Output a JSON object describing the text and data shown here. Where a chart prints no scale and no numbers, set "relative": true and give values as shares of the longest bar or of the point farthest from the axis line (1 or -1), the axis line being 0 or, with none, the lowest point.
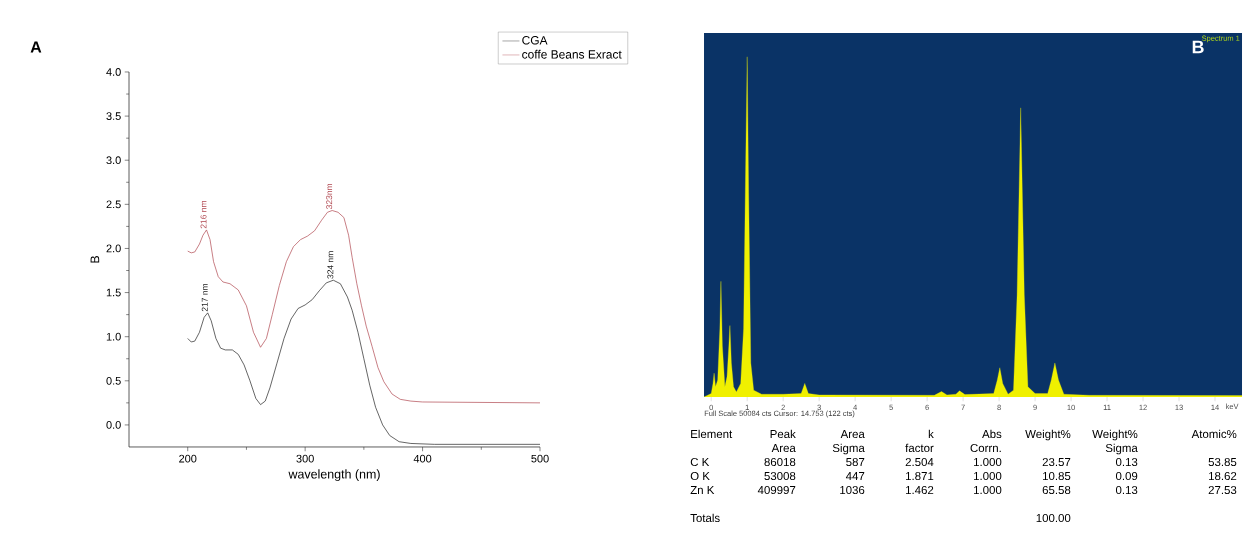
{
  "chart_data": [
    {
      "type": "line",
      "xlabel": "wavelength (nm)",
      "ylabel": "B",
      "xlim": [
        150,
        500
      ],
      "ylim": [
        -0.25,
        4.0
      ],
      "xticks": [
        200,
        300,
        400,
        500
      ],
      "yticks": [
        {
          "value": 0,
          "label": "0.0"
        },
        {
          "value": 0.5,
          "label": "0.5"
        },
        {
          "value": 1,
          "label": "1.0"
        },
        {
          "value": 1.5,
          "label": "1.5"
        },
        {
          "value": 2,
          "label": "2.0"
        },
        {
          "value": 2.5,
          "label": "2.5"
        },
        {
          "value": 3,
          "label": "3.0"
        },
        {
          "value": 3.5,
          "label": "3.5"
        },
        {
          "value": 4,
          "label": "4.0"
        }
      ],
      "legend": "top right",
      "series": [
        {
          "name": "CGA",
          "color": "#222222",
          "x": [
            200,
            203,
            206,
            210,
            214,
            217,
            220,
            224,
            228,
            232,
            238,
            243,
            248,
            253,
            258,
            262,
            266,
            270,
            276,
            282,
            288,
            294,
            300,
            306,
            312,
            318,
            324,
            330,
            336,
            340,
            345,
            350,
            355,
            360,
            366,
            372,
            380,
            390,
            410,
            450,
            500
          ],
          "values": [
            0.98,
            0.94,
            0.95,
            1.05,
            1.22,
            1.27,
            1.18,
            0.98,
            0.87,
            0.85,
            0.85,
            0.8,
            0.68,
            0.5,
            0.3,
            0.23,
            0.27,
            0.42,
            0.7,
            0.98,
            1.2,
            1.32,
            1.36,
            1.42,
            1.52,
            1.61,
            1.64,
            1.6,
            1.45,
            1.3,
            1.05,
            0.75,
            0.45,
            0.2,
            0.0,
            -0.12,
            -0.19,
            -0.21,
            -0.22,
            -0.22,
            -0.22
          ]
        },
        {
          "name": "coffe Beans Exract",
          "color": "#b0464f",
          "x": [
            200,
            203,
            206,
            210,
            213,
            216,
            219,
            222,
            226,
            230,
            236,
            243,
            250,
            256,
            262,
            267,
            272,
            278,
            284,
            290,
            296,
            302,
            308,
            314,
            319,
            323,
            328,
            333,
            337,
            340,
            344,
            348,
            352,
            357,
            362,
            367,
            374,
            381,
            390,
            400,
            500
          ],
          "values": [
            1.97,
            1.95,
            1.96,
            2.05,
            2.15,
            2.21,
            2.1,
            1.85,
            1.68,
            1.62,
            1.6,
            1.53,
            1.35,
            1.05,
            0.88,
            0.98,
            1.25,
            1.58,
            1.85,
            2.02,
            2.1,
            2.14,
            2.2,
            2.32,
            2.41,
            2.43,
            2.41,
            2.35,
            2.15,
            1.9,
            1.6,
            1.35,
            1.12,
            0.89,
            0.65,
            0.49,
            0.35,
            0.29,
            0.27,
            0.26,
            0.25
          ]
        }
      ],
      "annotations": [
        "A",
        {
          "text": "216 nm",
          "x": 216,
          "y": 2.21
        },
        {
          "text": "323nm",
          "x": 323,
          "y": 2.43
        },
        {
          "text": "217 nm",
          "x": 217,
          "y": 1.27
        },
        {
          "text": "324 nm",
          "x": 324,
          "y": 1.64
        }
      ]
    },
    {
      "type": "area",
      "relative": true,
      "xlabel": "keV",
      "xlim": [
        -0.2,
        14.75
      ],
      "xticks": [
        0,
        1,
        2,
        3,
        4,
        5,
        6,
        7,
        8,
        9,
        10,
        11,
        12,
        13,
        14
      ],
      "color": "#f0f000",
      "x": [
        -0.2,
        0.0,
        0.05,
        0.08,
        0.12,
        0.18,
        0.24,
        0.27,
        0.31,
        0.38,
        0.44,
        0.49,
        0.52,
        0.56,
        0.62,
        0.7,
        0.82,
        0.9,
        0.96,
        1.0,
        1.04,
        1.1,
        1.18,
        1.4,
        2.0,
        2.5,
        2.6,
        2.7,
        3.0,
        6.2,
        6.4,
        6.55,
        6.8,
        6.9,
        7.05,
        7.85,
        7.95,
        8.02,
        8.1,
        8.25,
        8.4,
        8.5,
        8.6,
        8.7,
        8.8,
        9.0,
        9.35,
        9.45,
        9.55,
        9.65,
        9.8,
        10.5,
        14.75
      ],
      "values": [
        0,
        0.01,
        0.04,
        0.07,
        0.03,
        0.05,
        0.2,
        0.34,
        0.15,
        0.03,
        0.06,
        0.15,
        0.21,
        0.1,
        0.03,
        0.015,
        0.04,
        0.2,
        0.7,
        1.0,
        0.6,
        0.1,
        0.02,
        0.008,
        0.008,
        0.01,
        0.04,
        0.01,
        0.006,
        0.005,
        0.016,
        0.006,
        0.008,
        0.018,
        0.007,
        0.01,
        0.05,
        0.086,
        0.04,
        0.008,
        0.02,
        0.3,
        0.85,
        0.3,
        0.03,
        0.01,
        0.01,
        0.05,
        0.1,
        0.05,
        0.008,
        0.005,
        0.004
      ],
      "annotations": [
        "B",
        "Spectrum 1",
        "Full Scale 50084 cts Cursor: 14.753 (122 cts)"
      ]
    },
    {
      "type": "other",
      "ylabel": "Element",
      "categories": [
        "Peak Area",
        "Area Sigma",
        "k factor",
        "Abs Corrn.",
        "Weight%",
        "Weight% Sigma",
        "Atomic%"
      ],
      "y_categories": [
        "C K",
        "O K",
        "Zn K",
        "Totals"
      ],
      "cell_labels": [
        [
          "86018",
          "587",
          "2.504",
          "1.000",
          "23.57",
          "0.13",
          "53.85"
        ],
        [
          "53008",
          "447",
          "1.871",
          "1.000",
          "10.85",
          "0.09",
          "18.62"
        ],
        [
          "409997",
          "1036",
          "1.462",
          "1.000",
          "65.58",
          "0.13",
          "27.53"
        ],
        [
          null,
          null,
          null,
          null,
          "100.00",
          null,
          null
        ]
      ]
    }
  ]
}
